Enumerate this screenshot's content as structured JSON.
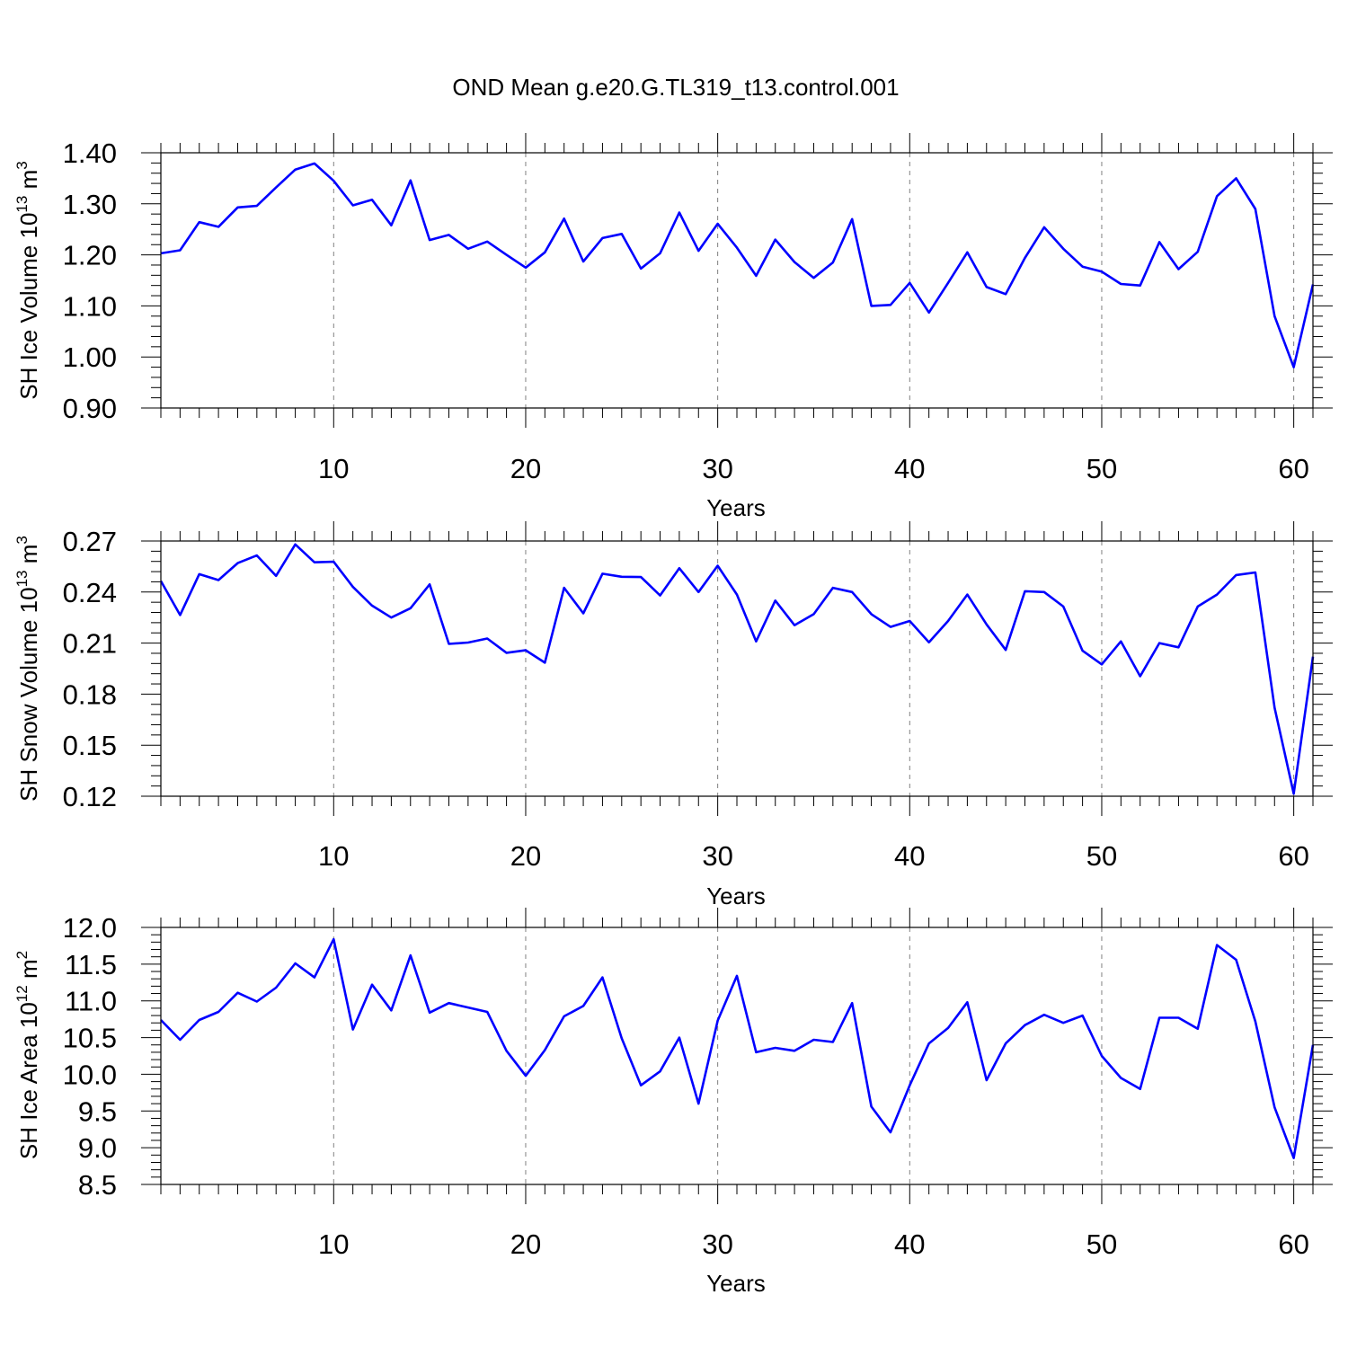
{
  "title": "OND Mean g.e20.G.TL319_t13.control.001",
  "colors": {
    "line": "#0000ff",
    "axis": "#000000",
    "grid": "#808080"
  },
  "chart_data": [
    {
      "type": "line",
      "title": "OND Mean g.e20.G.TL319_t13.control.001",
      "xlabel": "Years",
      "ylabel": {
        "base": "SH Ice Volume 10",
        "exp": "13",
        "unit": " m",
        "unit_exp": "3"
      },
      "xlim": [
        1,
        61
      ],
      "ylim": [
        0.9,
        1.4
      ],
      "x_major_ticks": [
        10,
        20,
        30,
        40,
        50,
        60
      ],
      "x_tick_labels": [
        "10",
        "20",
        "30",
        "40",
        "50",
        "60"
      ],
      "y_major_ticks": [
        0.9,
        1.0,
        1.1,
        1.2,
        1.3,
        1.4
      ],
      "y_tick_labels": [
        "0.90",
        "1.00",
        "1.10",
        "1.20",
        "1.30",
        "1.40"
      ],
      "y_minor_step": 0.02,
      "grid": "vertical-dashed",
      "x": [
        1,
        2,
        3,
        4,
        5,
        6,
        7,
        8,
        9,
        10,
        11,
        12,
        13,
        14,
        15,
        16,
        17,
        18,
        19,
        20,
        21,
        22,
        23,
        24,
        25,
        26,
        27,
        28,
        29,
        30,
        31,
        32,
        33,
        34,
        35,
        36,
        37,
        38,
        39,
        40,
        41,
        42,
        43,
        44,
        45,
        46,
        47,
        48,
        49,
        50,
        51,
        52,
        53,
        54,
        55,
        56,
        57,
        58,
        59,
        60,
        61
      ],
      "series": [
        {
          "name": "SH Ice Volume",
          "values": [
            1.203,
            1.209,
            1.264,
            1.255,
            1.293,
            1.296,
            1.332,
            1.367,
            1.379,
            1.345,
            1.297,
            1.308,
            1.258,
            1.346,
            1.229,
            1.239,
            1.212,
            1.226,
            1.2,
            1.175,
            1.205,
            1.271,
            1.187,
            1.233,
            1.241,
            1.173,
            1.203,
            1.283,
            1.208,
            1.261,
            1.214,
            1.159,
            1.23,
            1.186,
            1.155,
            1.185,
            1.27,
            1.1,
            1.102,
            1.145,
            1.087,
            1.145,
            1.205,
            1.137,
            1.123,
            1.194,
            1.254,
            1.212,
            1.177,
            1.167,
            1.143,
            1.14,
            1.225,
            1.172,
            1.206,
            1.315,
            1.35,
            1.29,
            1.08,
            0.98,
            1.142
          ]
        }
      ]
    },
    {
      "type": "line",
      "xlabel": "Years",
      "ylabel": {
        "base": "SH Snow Volume 10",
        "exp": "13",
        "unit": " m",
        "unit_exp": "3"
      },
      "xlim": [
        1,
        61
      ],
      "ylim": [
        0.12,
        0.27
      ],
      "x_major_ticks": [
        10,
        20,
        30,
        40,
        50,
        60
      ],
      "x_tick_labels": [
        "10",
        "20",
        "30",
        "40",
        "50",
        "60"
      ],
      "y_major_ticks": [
        0.12,
        0.15,
        0.18,
        0.21,
        0.24,
        0.27
      ],
      "y_tick_labels": [
        "0.12",
        "0.15",
        "0.18",
        "0.21",
        "0.24",
        "0.27"
      ],
      "y_minor_step": 0.006,
      "grid": "vertical-dashed",
      "x": [
        1,
        2,
        3,
        4,
        5,
        6,
        7,
        8,
        9,
        10,
        11,
        12,
        13,
        14,
        15,
        16,
        17,
        18,
        19,
        20,
        21,
        22,
        23,
        24,
        25,
        26,
        27,
        28,
        29,
        30,
        31,
        32,
        33,
        34,
        35,
        36,
        37,
        38,
        39,
        40,
        41,
        42,
        43,
        44,
        45,
        46,
        47,
        48,
        49,
        50,
        51,
        52,
        53,
        54,
        55,
        56,
        57,
        58,
        59,
        60,
        61
      ],
      "series": [
        {
          "name": "SH Snow Volume",
          "values": [
            0.2465,
            0.2265,
            0.2505,
            0.247,
            0.257,
            0.2615,
            0.2495,
            0.268,
            0.2575,
            0.2578,
            0.243,
            0.232,
            0.225,
            0.2305,
            0.2445,
            0.2095,
            0.2103,
            0.2127,
            0.2043,
            0.2058,
            0.1985,
            0.2425,
            0.2275,
            0.2508,
            0.249,
            0.2488,
            0.238,
            0.254,
            0.24,
            0.2555,
            0.2385,
            0.211,
            0.235,
            0.2205,
            0.227,
            0.2425,
            0.24,
            0.227,
            0.2195,
            0.223,
            0.2105,
            0.223,
            0.2385,
            0.221,
            0.206,
            0.2405,
            0.24,
            0.2315,
            0.2055,
            0.1975,
            0.211,
            0.1905,
            0.21,
            0.2075,
            0.2315,
            0.2385,
            0.25,
            0.2515,
            0.172,
            0.1215,
            0.202
          ]
        }
      ]
    },
    {
      "type": "line",
      "xlabel": "Years",
      "ylabel": {
        "base": "SH Ice Area 10",
        "exp": "12",
        "unit": " m",
        "unit_exp": "2"
      },
      "xlim": [
        1,
        61
      ],
      "ylim": [
        8.5,
        12.0
      ],
      "x_major_ticks": [
        10,
        20,
        30,
        40,
        50,
        60
      ],
      "x_tick_labels": [
        "10",
        "20",
        "30",
        "40",
        "50",
        "60"
      ],
      "y_major_ticks": [
        8.5,
        9.0,
        9.5,
        10.0,
        10.5,
        11.0,
        11.5,
        12.0
      ],
      "y_tick_labels": [
        "8.5",
        "9.0",
        "9.5",
        "10.0",
        "10.5",
        "11.0",
        "11.5",
        "12.0"
      ],
      "y_minor_step": 0.1,
      "grid": "vertical-dashed",
      "x": [
        1,
        2,
        3,
        4,
        5,
        6,
        7,
        8,
        9,
        10,
        11,
        12,
        13,
        14,
        15,
        16,
        17,
        18,
        19,
        20,
        21,
        22,
        23,
        24,
        25,
        26,
        27,
        28,
        29,
        30,
        31,
        32,
        33,
        34,
        35,
        36,
        37,
        38,
        39,
        40,
        41,
        42,
        43,
        44,
        45,
        46,
        47,
        48,
        49,
        50,
        51,
        52,
        53,
        54,
        55,
        56,
        57,
        58,
        59,
        60,
        61
      ],
      "series": [
        {
          "name": "SH Ice Area",
          "values": [
            10.74,
            10.47,
            10.74,
            10.85,
            11.11,
            10.99,
            11.18,
            11.51,
            11.32,
            11.84,
            10.61,
            11.22,
            10.87,
            11.62,
            10.84,
            10.97,
            10.91,
            10.85,
            10.32,
            9.98,
            10.33,
            10.79,
            10.93,
            11.32,
            10.49,
            9.85,
            10.04,
            10.5,
            9.6,
            10.73,
            11.34,
            10.3,
            10.36,
            10.32,
            10.47,
            10.44,
            10.97,
            9.56,
            9.21,
            9.85,
            10.42,
            10.63,
            10.98,
            9.92,
            10.42,
            10.67,
            10.81,
            10.7,
            10.8,
            10.25,
            9.95,
            9.8,
            10.77,
            10.77,
            10.62,
            11.76,
            11.56,
            10.72,
            9.55,
            8.86,
            10.4
          ]
        }
      ]
    }
  ]
}
